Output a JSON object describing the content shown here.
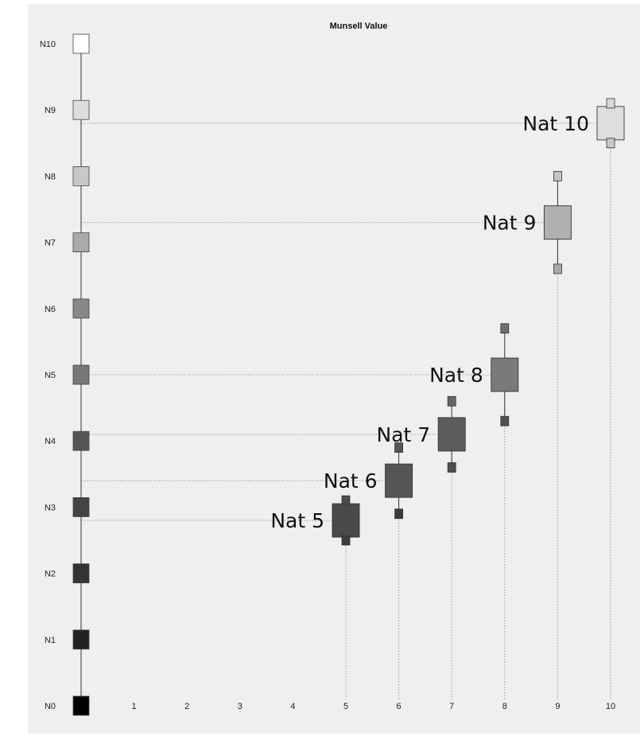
{
  "chart_data": {
    "type": "scatter",
    "title": "Munsell Value",
    "xlabel": "",
    "ylabel": "",
    "xlim": [
      0,
      10
    ],
    "ylim": [
      0,
      10
    ],
    "x_ticks": [
      "1",
      "2",
      "3",
      "4",
      "5",
      "6",
      "7",
      "8",
      "9",
      "10"
    ],
    "y_ticks": [
      "N0",
      "N1",
      "N2",
      "N3",
      "N4",
      "N5",
      "N6",
      "N7",
      "N8",
      "N9",
      "N10"
    ],
    "grid": false,
    "legend": "none",
    "background_color": "#efefef",
    "reference_scale": [
      {
        "label": "N0",
        "value": 0,
        "color": "#000000"
      },
      {
        "label": "N1",
        "value": 1,
        "color": "#222222"
      },
      {
        "label": "N2",
        "value": 2,
        "color": "#333333"
      },
      {
        "label": "N3",
        "value": 3,
        "color": "#444444"
      },
      {
        "label": "N4",
        "value": 4,
        "color": "#555555"
      },
      {
        "label": "N5",
        "value": 5,
        "color": "#777777"
      },
      {
        "label": "N6",
        "value": 6,
        "color": "#888888"
      },
      {
        "label": "N7",
        "value": 7,
        "color": "#aaaaaa"
      },
      {
        "label": "N8",
        "value": 8,
        "color": "#c8c8c8"
      },
      {
        "label": "N9",
        "value": 9,
        "color": "#dddddd"
      },
      {
        "label": "N10",
        "value": 10,
        "color": "#ffffff"
      }
    ],
    "series": [
      {
        "name": "Nat 5",
        "x": 5,
        "mean": 2.8,
        "high": 3.1,
        "low": 2.5,
        "color": "#4a4a4a",
        "high_color": "#4a4a4a",
        "low_color": "#3c3c3c"
      },
      {
        "name": "Nat 6",
        "x": 6,
        "mean": 3.4,
        "high": 3.9,
        "low": 2.9,
        "color": "#555555",
        "high_color": "#555555",
        "low_color": "#3c3c3c"
      },
      {
        "name": "Nat 7",
        "x": 7,
        "mean": 4.1,
        "high": 4.6,
        "low": 3.6,
        "color": "#5c5c5c",
        "high_color": "#666666",
        "low_color": "#4e4e4e"
      },
      {
        "name": "Nat 8",
        "x": 8,
        "mean": 5.0,
        "high": 5.7,
        "low": 4.3,
        "color": "#7a7a7a",
        "high_color": "#6e6e6e",
        "low_color": "#505050"
      },
      {
        "name": "Nat 9",
        "x": 9,
        "mean": 7.3,
        "high": 8.0,
        "low": 6.6,
        "color": "#b0b0b0",
        "high_color": "#c4c4c4",
        "low_color": "#a8a8a8"
      },
      {
        "name": "Nat 10",
        "x": 10,
        "mean": 8.8,
        "high": 9.1,
        "low": 8.5,
        "color": "#dedede",
        "high_color": "#d8d8d8",
        "low_color": "#c8c8c8"
      }
    ]
  }
}
